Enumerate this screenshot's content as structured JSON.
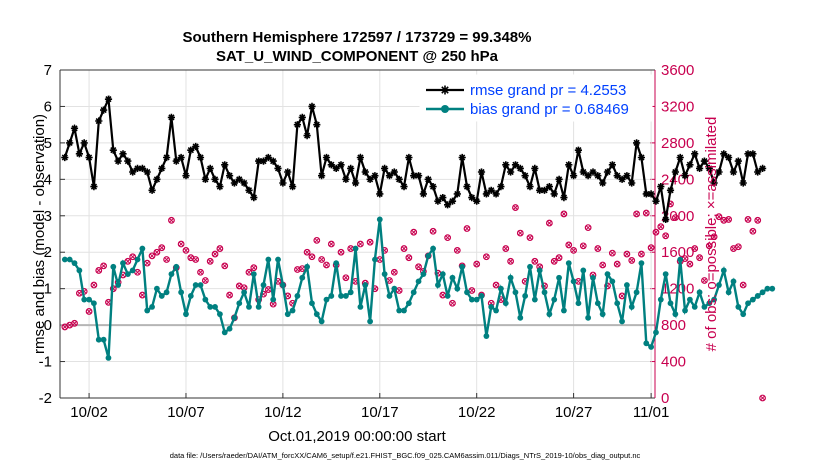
{
  "chart_data": {
    "type": "line",
    "title": "Southern Hemisphere 172597 / 173729 = 99.348%",
    "subtitle": "SAT_U_WIND_COMPONENT @ 250 hPa",
    "xlabel": "Oct.01,2019 00:00:00 start",
    "ylabel": "rmse and bias (model - observation)",
    "ylabel_right": "# of obs: o=possible; ×=assimilated",
    "ylim": [
      -2,
      7
    ],
    "ylim_right": [
      0,
      3600
    ],
    "xlim": [
      0.5,
      31.2
    ],
    "yticks": [
      "-2",
      "-1",
      "0",
      "1",
      "2",
      "3",
      "4",
      "5",
      "6",
      "7"
    ],
    "yticks_right": [
      "0",
      "400",
      "800",
      "1200",
      "1600",
      "2000",
      "2400",
      "2800",
      "3200",
      "3600"
    ],
    "xticks": [
      {
        "x": 2,
        "label": "10/02"
      },
      {
        "x": 7,
        "label": "10/07"
      },
      {
        "x": 12,
        "label": "10/12"
      },
      {
        "x": 17,
        "label": "10/17"
      },
      {
        "x": 22,
        "label": "10/22"
      },
      {
        "x": 27,
        "label": "10/27"
      },
      {
        "x": 31,
        "label": "11/01"
      }
    ],
    "grid": true,
    "legend_position": "top-right",
    "x_start": 0.75,
    "x_step": 0.25,
    "series": [
      {
        "name": "rmse grand pr = 4.2553",
        "color": "#000000",
        "marker": "asterisk",
        "values": [
          4.6,
          5.0,
          5.4,
          4.7,
          5.0,
          4.6,
          3.8,
          5.6,
          5.9,
          6.2,
          4.8,
          4.5,
          4.7,
          4.5,
          4.2,
          4.3,
          4.3,
          4.2,
          3.7,
          4.0,
          4.3,
          4.6,
          5.7,
          4.5,
          4.6,
          4.1,
          4.8,
          4.9,
          4.6,
          4.0,
          4.3,
          4.0,
          3.8,
          4.4,
          4.1,
          3.9,
          4.0,
          3.9,
          3.7,
          3.5,
          4.5,
          4.5,
          4.6,
          4.5,
          4.3,
          3.9,
          4.2,
          3.8,
          5.5,
          5.7,
          5.2,
          6.0,
          5.5,
          4.1,
          4.6,
          4.4,
          4.3,
          4.4,
          4.0,
          4.3,
          3.9,
          4.6,
          4.2,
          4.0,
          4.1,
          3.6,
          4.3,
          4.1,
          4.2,
          4.0,
          3.8,
          4.6,
          4.1,
          4.1,
          3.6,
          4.0,
          3.8,
          3.4,
          3.5,
          3.3,
          3.4,
          3.6,
          4.6,
          3.8,
          3.5,
          3.4,
          4.2,
          3.6,
          3.7,
          3.6,
          3.8,
          4.4,
          4.2,
          4.4,
          4.3,
          4.1,
          3.8,
          4.3,
          3.7,
          3.7,
          3.8,
          3.6,
          4.0,
          3.5,
          4.4,
          4.1,
          4.8,
          4.2,
          4.1,
          4.2,
          4.1,
          3.9,
          4.2,
          4.4,
          4.1,
          4.0,
          4.1,
          3.9,
          5.0,
          4.6,
          3.6,
          3.6,
          3.4,
          3.8,
          2.9,
          3.7,
          4.2,
          4.6,
          4.1,
          4.4,
          4.7,
          4.3,
          4.5,
          4.3,
          3.9,
          4.2,
          4.7,
          4.6,
          4.2,
          4.5,
          3.9,
          4.7,
          4.7,
          4.2,
          4.3
        ]
      },
      {
        "name": "bias grand pr = 0.68469",
        "color": "#008080",
        "marker": "dot",
        "values": [
          1.8,
          1.8,
          1.7,
          1.5,
          0.7,
          0.7,
          0.6,
          -0.4,
          -0.4,
          -0.9,
          1.6,
          1.1,
          1.7,
          1.4,
          1.5,
          1.8,
          2.1,
          0.4,
          0.5,
          1.0,
          0.8,
          0.9,
          1.4,
          1.6,
          0.9,
          0.3,
          0.8,
          1.1,
          1.1,
          0.7,
          0.5,
          0.5,
          0.3,
          -0.2,
          -0.1,
          0.2,
          0.6,
          0.9,
          0.5,
          1.4,
          0.5,
          1.1,
          1.8,
          0.7,
          1.8,
          1.1,
          0.3,
          0.4,
          0.8,
          1.3,
          1.6,
          0.6,
          0.3,
          0.1,
          0.7,
          0.8,
          1.7,
          0.8,
          0.8,
          0.9,
          2.1,
          0.5,
          1.1,
          0.1,
          1.8,
          2.9,
          1.4,
          0.8,
          1.0,
          0.4,
          0.4,
          0.6,
          0.9,
          1.2,
          1.4,
          1.9,
          2.1,
          1.1,
          1.4,
          0.8,
          1.3,
          1.0,
          1.6,
          0.9,
          0.7,
          0.7,
          0.8,
          -0.3,
          0.5,
          0.4,
          1.0,
          0.6,
          1.3,
          0.9,
          0.2,
          0.8,
          1.6,
          0.7,
          1.5,
          0.9,
          0.3,
          0.7,
          1.3,
          0.4,
          1.7,
          1.2,
          0.6,
          1.5,
          0.2,
          1.3,
          0.6,
          0.3,
          1.4,
          1.2,
          0.6,
          0.1,
          1.1,
          0.5,
          0.9,
          1.7,
          -0.5,
          -0.6,
          -0.2,
          0.7,
          1.4,
          0.6,
          0.3,
          1.8,
          0.4,
          0.7,
          0.5,
          0.9,
          0.5,
          0.6,
          0.7,
          1.1,
          1.5,
          0.9,
          1.2,
          0.5,
          0.3,
          0.6,
          0.7,
          0.8,
          0.9,
          1.0,
          1.0
        ]
      },
      {
        "name": "possible",
        "color": "#c8004f",
        "marker": "circle",
        "axis": "right",
        "values": [
          780,
          800,
          820,
          1150,
          1170,
          950,
          1240,
          1400,
          1450,
          1050,
          1200,
          1270,
          1350,
          1500,
          1550,
          1380,
          1130,
          1480,
          1560,
          1600,
          1650,
          1520,
          1950,
          1430,
          1690,
          1620,
          1540,
          1520,
          1380,
          1290,
          1500,
          1580,
          1640,
          1450,
          1130,
          880,
          1230,
          1210,
          1380,
          1430,
          1080,
          1140,
          1190,
          1030,
          1280,
          1240,
          1120,
          1040,
          1410,
          1420,
          1600,
          1550,
          1730,
          1520,
          1460,
          1690,
          1460,
          1600,
          1320,
          1640,
          1280,
          1690,
          1260,
          1710,
          1200,
          1520,
          1620,
          1290,
          1380,
          1180,
          1640,
          1540,
          1820,
          1440,
          1390,
          1560,
          1830,
          1370,
          1130,
          1760,
          1040,
          1620,
          1450,
          1860,
          1180,
          1470,
          1130,
          1550,
          1040,
          1240,
          1080,
          1640,
          1500,
          2090,
          1810,
          1280,
          1760,
          1500,
          1440,
          1230,
          1920,
          1500,
          1540,
          2020,
          1680,
          1620,
          1280,
          1670,
          1870,
          1350,
          1640,
          1460,
          1230,
          1590,
          1470,
          1120,
          1580,
          1510,
          2020,
          1580,
          2030,
          1650,
          1820,
          1880,
          1780,
          2130,
          1980,
          1500,
          1530,
          1470,
          1640,
          1540,
          1290,
          1670,
          1770,
          1990,
          1950,
          1960,
          1640,
          1660,
          1240,
          1960,
          1830,
          1950,
          0
        ]
      }
    ]
  },
  "footnote": "data file: /Users/raeder/DAI/ATM_forcXX/CAM6_setup/f.e21.FHIST_BGC.f09_025.CAM6assim.011/Diags_NTrS_2019-10/obs_diag_output.nc"
}
